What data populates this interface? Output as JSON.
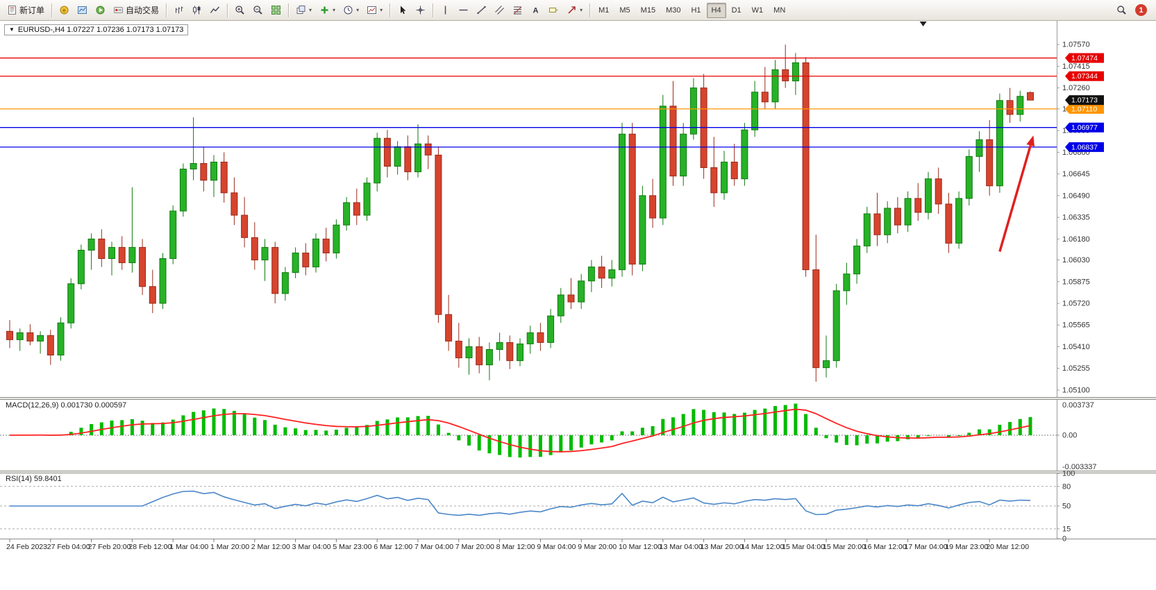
{
  "toolbar": {
    "groups": [
      {
        "items": [
          {
            "name": "new-order-button",
            "icon": "new-order-icon",
            "label": "新订单"
          }
        ]
      },
      {
        "items": [
          {
            "name": "metaeditor-button",
            "icon": "metaeditor-icon"
          },
          {
            "name": "market-watch-button",
            "icon": "market-watch-icon"
          },
          {
            "name": "strategy-tester-button",
            "icon": "tester-icon"
          },
          {
            "name": "autotrading-button",
            "icon": "autotrading-icon",
            "label": "自动交易"
          }
        ]
      },
      {
        "items": [
          {
            "name": "bar-chart-button",
            "icon": "bar-chart-icon"
          },
          {
            "name": "candlestick-button",
            "icon": "candlestick-icon"
          },
          {
            "name": "line-chart-button",
            "icon": "line-chart-icon"
          }
        ]
      },
      {
        "items": [
          {
            "name": "zoom-in-button",
            "icon": "zoom-in-icon"
          },
          {
            "name": "zoom-out-button",
            "icon": "zoom-out-icon"
          },
          {
            "name": "tile-windows-button",
            "icon": "tile-windows-icon"
          }
        ]
      },
      {
        "items": [
          {
            "name": "auto-arrange-button",
            "icon": "cascade-icon",
            "dropdown": true
          },
          {
            "name": "indicators-button",
            "icon": "indicators-icon",
            "dropdown": true
          },
          {
            "name": "periods-button",
            "icon": "clock-icon",
            "dropdown": true
          },
          {
            "name": "templates-button",
            "icon": "template-icon",
            "dropdown": true
          }
        ]
      },
      {
        "items": [
          {
            "name": "cursor-button",
            "icon": "cursor-icon"
          },
          {
            "name": "crosshair-button",
            "icon": "crosshair-icon"
          }
        ]
      },
      {
        "items": [
          {
            "name": "vertical-line-button",
            "icon": "vertical-line-icon"
          },
          {
            "name": "horizontal-line-button",
            "icon": "horizontal-line-icon"
          },
          {
            "name": "trendline-button",
            "icon": "trendline-icon"
          },
          {
            "name": "channel-button",
            "icon": "channel-icon"
          },
          {
            "name": "fibonacci-button",
            "icon": "fibonacci-icon"
          },
          {
            "name": "text-button",
            "icon": "text-icon"
          },
          {
            "name": "label-button",
            "icon": "label-icon"
          },
          {
            "name": "shapes-button",
            "icon": "shapes-icon",
            "dropdown": true
          }
        ]
      }
    ],
    "timeframes": [
      "M1",
      "M5",
      "M15",
      "M30",
      "H1",
      "H4",
      "D1",
      "W1",
      "MN"
    ],
    "active_timeframe": "H4",
    "notification_count": "1"
  },
  "indicators": {
    "macd": {
      "label": "MACD(12,26,9) 0.001730 0.000597",
      "params": [
        12,
        26,
        9
      ],
      "values": [
        "0.001730",
        "0.000597"
      ],
      "scale_ticks": [
        "0.003737",
        "0.00",
        "-0.003337"
      ]
    },
    "rsi": {
      "label": "RSI(14) 59.8401",
      "period": 14,
      "value": "59.8401",
      "scale_ticks": [
        "100",
        "80",
        "50",
        "15",
        "0"
      ],
      "levels": [
        80,
        50,
        15
      ]
    }
  },
  "colors": {
    "up_candle": "#27b227",
    "up_border": "#117a11",
    "down_candle": "#d6442e",
    "down_border": "#9a2a1a",
    "macd_hist": "#00bb00",
    "macd_signal": "#ff2020",
    "rsi_line": "#4a86c8",
    "axis_text": "#333333",
    "current_price_bg": "#111111"
  },
  "chart_data": {
    "type": "candlestick",
    "symbol": "EURUSD-",
    "timeframe": "H4",
    "title": "EURUSD-,H4 1.07227 1.07236 1.07173 1.07173",
    "ohlc": {
      "open": "1.07227",
      "high": "1.07236",
      "low": "1.07173",
      "close": "1.07173"
    },
    "y_axis": {
      "min": 1.0506,
      "max": 1.077,
      "ticks": [
        "1.07570",
        "1.07415",
        "1.07260",
        "1.07110",
        "1.06955",
        "1.06800",
        "1.06645",
        "1.06490",
        "1.06335",
        "1.06180",
        "1.06030",
        "1.05875",
        "1.05720",
        "1.05565",
        "1.05410",
        "1.05255",
        "1.05100"
      ]
    },
    "x_labels": [
      "24 Feb 2023",
      "27 Feb 04:00",
      "27 Feb 20:00",
      "28 Feb 12:00",
      "1 Mar 04:00",
      "1 Mar 20:00",
      "2 Mar 12:00",
      "3 Mar 04:00",
      "5 Mar 23:00",
      "6 Mar 12:00",
      "7 Mar 04:00",
      "7 Mar 20:00",
      "8 Mar 12:00",
      "9 Mar 04:00",
      "9 Mar 20:00",
      "10 Mar 12:00",
      "13 Mar 04:00",
      "13 Mar 20:00",
      "14 Mar 12:00",
      "15 Mar 04:00",
      "15 Mar 20:00",
      "16 Mar 12:00",
      "17 Mar 04:00",
      "19 Mar 23:00",
      "20 Mar 12:00"
    ],
    "candles": [
      [
        1.0552,
        1.056,
        1.054,
        1.0546
      ],
      [
        1.0546,
        1.0554,
        1.0538,
        1.0551
      ],
      [
        1.0551,
        1.0557,
        1.0542,
        1.0545
      ],
      [
        1.0545,
        1.0552,
        1.0536,
        1.0549
      ],
      [
        1.0549,
        1.0553,
        1.0528,
        1.0535
      ],
      [
        1.0535,
        1.0562,
        1.0531,
        1.0558
      ],
      [
        1.0558,
        1.059,
        1.0554,
        1.0586
      ],
      [
        1.0586,
        1.0614,
        1.0582,
        1.061
      ],
      [
        1.061,
        1.0622,
        1.0596,
        1.0618
      ],
      [
        1.0618,
        1.0625,
        1.0598,
        1.0604
      ],
      [
        1.0604,
        1.0616,
        1.0592,
        1.0612
      ],
      [
        1.0612,
        1.062,
        1.0596,
        1.0601
      ],
      [
        1.0601,
        1.0655,
        1.0594,
        1.0612
      ],
      [
        1.0612,
        1.0618,
        1.0578,
        1.0584
      ],
      [
        1.0584,
        1.0596,
        1.0565,
        1.0572
      ],
      [
        1.0572,
        1.0608,
        1.0568,
        1.0604
      ],
      [
        1.0604,
        1.0642,
        1.06,
        1.0638
      ],
      [
        1.0638,
        1.0672,
        1.0634,
        1.0668
      ],
      [
        1.0668,
        1.0705,
        1.066,
        1.0672
      ],
      [
        1.0672,
        1.0684,
        1.0652,
        1.066
      ],
      [
        1.066,
        1.0678,
        1.0648,
        1.0673
      ],
      [
        1.0673,
        1.068,
        1.0644,
        1.0651
      ],
      [
        1.0651,
        1.0662,
        1.0628,
        1.0635
      ],
      [
        1.0635,
        1.0648,
        1.0612,
        1.0619
      ],
      [
        1.0619,
        1.063,
        1.0596,
        1.0603
      ],
      [
        1.0603,
        1.0618,
        1.0588,
        1.0612
      ],
      [
        1.0612,
        1.0616,
        1.0572,
        1.0579
      ],
      [
        1.0579,
        1.0598,
        1.0574,
        1.0594
      ],
      [
        1.0594,
        1.0612,
        1.059,
        1.0608
      ],
      [
        1.0608,
        1.0615,
        1.0592,
        1.0598
      ],
      [
        1.0598,
        1.0622,
        1.0594,
        1.0618
      ],
      [
        1.0618,
        1.0626,
        1.0602,
        1.0608
      ],
      [
        1.0608,
        1.0632,
        1.0604,
        1.0628
      ],
      [
        1.0628,
        1.0648,
        1.0624,
        1.0644
      ],
      [
        1.0644,
        1.0654,
        1.0628,
        1.0635
      ],
      [
        1.0635,
        1.0662,
        1.0631,
        1.0658
      ],
      [
        1.0658,
        1.0694,
        1.0652,
        1.069
      ],
      [
        1.069,
        1.0696,
        1.0662,
        1.067
      ],
      [
        1.067,
        1.0688,
        1.0664,
        1.0684
      ],
      [
        1.0684,
        1.0692,
        1.066,
        1.0666
      ],
      [
        1.0666,
        1.07,
        1.0662,
        1.0686
      ],
      [
        1.0686,
        1.0692,
        1.0668,
        1.0678
      ],
      [
        1.0678,
        1.0684,
        1.0558,
        1.0564
      ],
      [
        1.0564,
        1.0578,
        1.0538,
        1.0545
      ],
      [
        1.0545,
        1.0558,
        1.0526,
        1.0533
      ],
      [
        1.0533,
        1.0547,
        1.0521,
        1.0541
      ],
      [
        1.0541,
        1.0548,
        1.0522,
        1.0528
      ],
      [
        1.0528,
        1.0544,
        1.0517,
        1.0539
      ],
      [
        1.0539,
        1.0551,
        1.0531,
        1.0544
      ],
      [
        1.0544,
        1.0549,
        1.0525,
        1.0531
      ],
      [
        1.0531,
        1.0547,
        1.0527,
        1.0543
      ],
      [
        1.0543,
        1.0556,
        1.0536,
        1.0551
      ],
      [
        1.0551,
        1.0558,
        1.0538,
        1.0544
      ],
      [
        1.0544,
        1.0568,
        1.054,
        1.0563
      ],
      [
        1.0563,
        1.0583,
        1.0558,
        1.0578
      ],
      [
        1.0578,
        1.059,
        1.0568,
        1.0573
      ],
      [
        1.0573,
        1.0593,
        1.0568,
        1.0588
      ],
      [
        1.0588,
        1.0603,
        1.058,
        1.0598
      ],
      [
        1.0598,
        1.0606,
        1.0583,
        1.059
      ],
      [
        1.059,
        1.0603,
        1.0584,
        1.0596
      ],
      [
        1.0596,
        1.0701,
        1.0591,
        1.0693
      ],
      [
        1.0693,
        1.0701,
        1.0592,
        1.06
      ],
      [
        1.06,
        1.0656,
        1.0595,
        1.0649
      ],
      [
        1.0649,
        1.0661,
        1.0626,
        1.0633
      ],
      [
        1.0633,
        1.0721,
        1.0628,
        1.0713
      ],
      [
        1.0713,
        1.0731,
        1.0656,
        1.0663
      ],
      [
        1.0663,
        1.0701,
        1.0656,
        1.0693
      ],
      [
        1.0693,
        1.0733,
        1.0689,
        1.0726
      ],
      [
        1.0726,
        1.0736,
        1.0661,
        1.0669
      ],
      [
        1.0669,
        1.0691,
        1.0641,
        1.0651
      ],
      [
        1.0651,
        1.0681,
        1.0646,
        1.0673
      ],
      [
        1.0673,
        1.0686,
        1.0656,
        1.0661
      ],
      [
        1.0661,
        1.0701,
        1.0656,
        1.0696
      ],
      [
        1.0696,
        1.0731,
        1.0691,
        1.0723
      ],
      [
        1.0723,
        1.0741,
        1.0711,
        1.0716
      ],
      [
        1.0716,
        1.0746,
        1.0711,
        1.0739
      ],
      [
        1.0739,
        1.0757,
        1.0726,
        1.0731
      ],
      [
        1.0731,
        1.0751,
        1.0721,
        1.0744
      ],
      [
        1.0744,
        1.0748,
        1.0591,
        1.0596
      ],
      [
        1.0596,
        1.0621,
        1.0516,
        1.0526
      ],
      [
        1.0526,
        1.0549,
        1.0519,
        1.0531
      ],
      [
        1.0531,
        1.0586,
        1.0526,
        1.0581
      ],
      [
        1.0581,
        1.0601,
        1.0571,
        1.0593
      ],
      [
        1.0593,
        1.0618,
        1.0586,
        1.0613
      ],
      [
        1.0613,
        1.0641,
        1.0608,
        1.0636
      ],
      [
        1.0636,
        1.0651,
        1.0613,
        1.0621
      ],
      [
        1.0621,
        1.0645,
        1.0615,
        1.064
      ],
      [
        1.064,
        1.0648,
        1.0622,
        1.0628
      ],
      [
        1.0628,
        1.0652,
        1.0623,
        1.0647
      ],
      [
        1.0647,
        1.0658,
        1.0631,
        1.0637
      ],
      [
        1.0637,
        1.0666,
        1.0632,
        1.0661
      ],
      [
        1.0661,
        1.0669,
        1.0636,
        1.0643
      ],
      [
        1.0643,
        1.0651,
        1.0608,
        1.0615
      ],
      [
        1.0615,
        1.0652,
        1.0611,
        1.0647
      ],
      [
        1.0647,
        1.0682,
        1.0642,
        1.0677
      ],
      [
        1.0677,
        1.0695,
        1.0666,
        1.0689
      ],
      [
        1.0689,
        1.0703,
        1.0649,
        1.0656
      ],
      [
        1.0656,
        1.0722,
        1.0651,
        1.0717
      ],
      [
        1.0717,
        1.0726,
        1.0701,
        1.0707
      ],
      [
        1.0707,
        1.0724,
        1.0702,
        1.072
      ],
      [
        1.07227,
        1.07236,
        1.07173,
        1.07173
      ]
    ],
    "price_lines": [
      {
        "value": 1.07474,
        "label": "1.07474",
        "color": "#e80000"
      },
      {
        "value": 1.07344,
        "label": "1.07344",
        "color": "#e80000"
      },
      {
        "value": 1.0711,
        "label": "1.07110",
        "color": "#ff9500"
      },
      {
        "value": 1.06977,
        "label": "1.06977",
        "color": "#0000e8"
      },
      {
        "value": 1.06837,
        "label": "1.06837",
        "color": "#0000e8"
      }
    ],
    "current_price": {
      "value": 1.07173,
      "label": "1.07173"
    },
    "annotations": [
      {
        "type": "arrow",
        "from": {
          "bar": 97,
          "price": 1.0609
        },
        "to": {
          "bar": 100.3,
          "price": 1.0692
        },
        "color": "#e02020",
        "width": 3.5
      }
    ],
    "shift_marker_bar": 89.5
  }
}
